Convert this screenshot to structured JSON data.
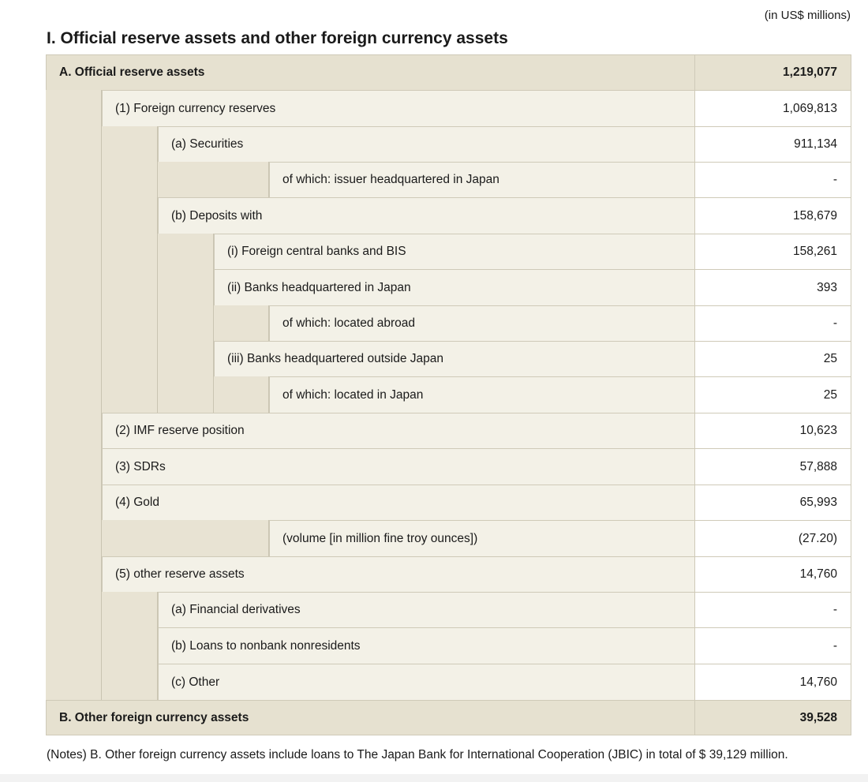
{
  "unit_note": "(in US$ millions)",
  "section_title": "I.  Official reserve assets and other foreign currency assets",
  "rows": [
    {
      "label": "A. Official reserve assets",
      "value": "1,219,077"
    },
    {
      "label": "(1) Foreign currency reserves",
      "value": "1,069,813"
    },
    {
      "label": "(a) Securities",
      "value": "911,134"
    },
    {
      "label": "of which: issuer headquartered in Japan",
      "value": "-"
    },
    {
      "label": "(b) Deposits with",
      "value": "158,679"
    },
    {
      "label": "(i) Foreign central banks and BIS",
      "value": "158,261"
    },
    {
      "label": "(ii) Banks headquartered in Japan",
      "value": "393"
    },
    {
      "label": "of which: located abroad",
      "value": "-"
    },
    {
      "label": "(iii) Banks headquartered outside Japan",
      "value": "25"
    },
    {
      "label": "of which: located in Japan",
      "value": "25"
    },
    {
      "label": "(2) IMF reserve position",
      "value": "10,623"
    },
    {
      "label": "(3) SDRs",
      "value": "57,888"
    },
    {
      "label": "(4) Gold",
      "value": "65,993"
    },
    {
      "label": "(volume [in million fine troy ounces])",
      "value": "(27.20)"
    },
    {
      "label": "(5) other reserve assets",
      "value": "14,760"
    },
    {
      "label": "(a) Financial derivatives",
      "value": "-"
    },
    {
      "label": "(b) Loans to nonbank nonresidents",
      "value": "-"
    },
    {
      "label": "(c) Other",
      "value": "14,760"
    },
    {
      "label": "B. Other foreign currency assets",
      "value": "39,528"
    }
  ],
  "notes": "(Notes) B. Other foreign currency assets include loans to The Japan Bank for International Cooperation (JBIC) in total of $ 39,129 million."
}
